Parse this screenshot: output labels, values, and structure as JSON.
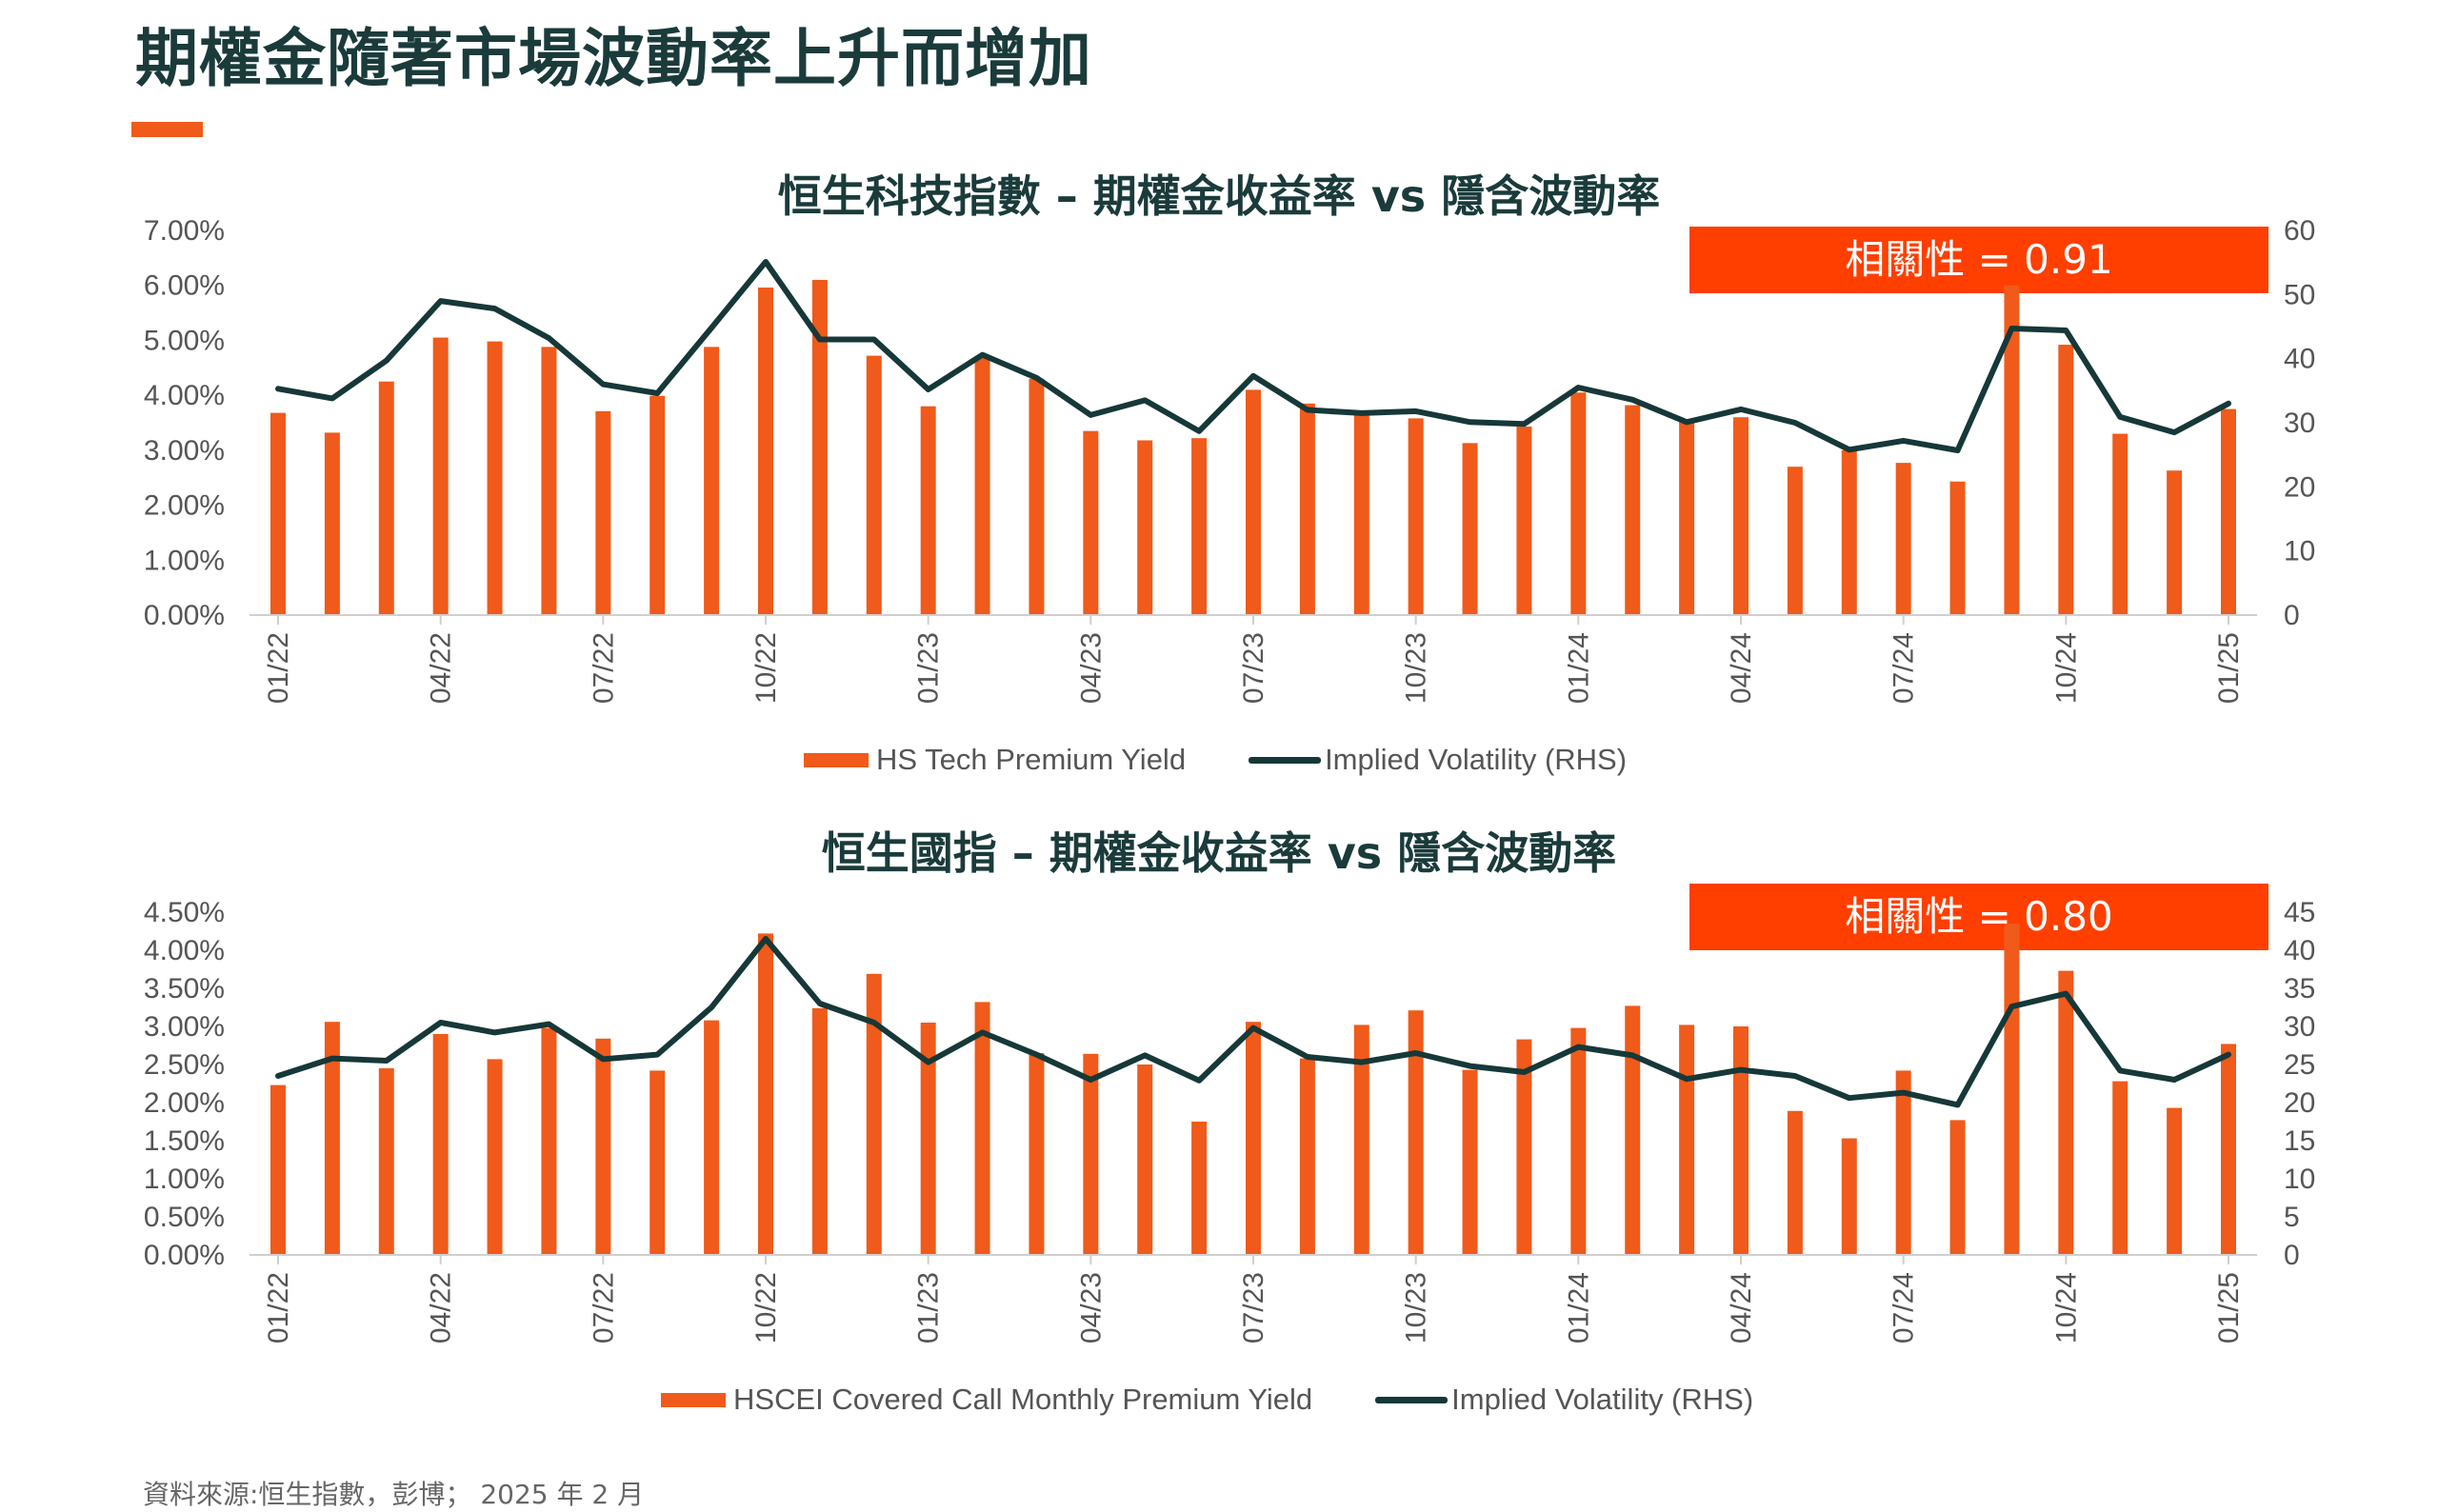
{
  "page": {
    "title": "期權金隨著市場波動率上升而增加",
    "source": "資料來源:恒生指數，彭博； 2025 年 2 月"
  },
  "colors": {
    "bar": "#f05a1a",
    "line": "#163838",
    "highlight": "#ff3f00",
    "title": "#1b3b3b"
  },
  "chart_data": [
    {
      "type": "bar",
      "title": "恒生科技指數 – 期權金收益率 vs 隱含波動率",
      "annotation": "相關性 = 0.91",
      "x": [
        "01/22",
        "02/22",
        "03/22",
        "04/22",
        "05/22",
        "06/22",
        "07/22",
        "08/22",
        "09/22",
        "10/22",
        "11/22",
        "12/22",
        "01/23",
        "02/23",
        "03/23",
        "04/23",
        "05/23",
        "06/23",
        "07/23",
        "08/23",
        "09/23",
        "10/23",
        "11/23",
        "12/23",
        "01/24",
        "02/24",
        "03/24",
        "04/24",
        "05/24",
        "06/24",
        "07/24",
        "08/24",
        "09/24",
        "10/24",
        "11/24",
        "12/24",
        "01/25"
      ],
      "x_ticks": [
        "01/22",
        "04/22",
        "07/22",
        "10/22",
        "01/23",
        "04/23",
        "07/23",
        "10/23",
        "01/24",
        "04/24",
        "07/24",
        "10/24",
        "01/25"
      ],
      "ylim": [
        0,
        0.07
      ],
      "y_ticks": [
        "0.00%",
        "1.00%",
        "2.00%",
        "3.00%",
        "4.00%",
        "5.00%",
        "6.00%",
        "7.00%"
      ],
      "y2lim": [
        0,
        60
      ],
      "y2_ticks": [
        "0",
        "10",
        "20",
        "30",
        "40",
        "50",
        "60"
      ],
      "series": [
        {
          "name": "HS Tech Premium Yield",
          "kind": "bar",
          "axis": "left",
          "values": [
            0.0368,
            0.0332,
            0.0425,
            0.0505,
            0.0498,
            0.0488,
            0.0371,
            0.0399,
            0.0488,
            0.0596,
            0.061,
            0.0472,
            0.038,
            0.047,
            0.043,
            0.0335,
            0.0318,
            0.0322,
            0.041,
            0.0385,
            0.0365,
            0.0358,
            0.0313,
            0.0343,
            0.0405,
            0.0382,
            0.0355,
            0.036,
            0.027,
            0.03,
            0.0277,
            0.0243,
            0.06,
            0.0492,
            0.033,
            0.0263,
            0.0375
          ]
        },
        {
          "name": "Implied Volatility (RHS)",
          "kind": "line",
          "axis": "right",
          "values": [
            35.3,
            33.8,
            39.7,
            49.0,
            47.8,
            43.2,
            36.0,
            34.6,
            44.8,
            55.1,
            43.0,
            43.0,
            35.2,
            40.6,
            37.0,
            31.2,
            33.5,
            28.7,
            37.3,
            32.0,
            31.5,
            31.8,
            30.1,
            29.8,
            35.5,
            33.6,
            30.1,
            32.1,
            30.0,
            25.8,
            27.2,
            25.7,
            44.7,
            44.4,
            30.9,
            28.5,
            33.0
          ]
        }
      ],
      "legend_position": "bottom"
    },
    {
      "type": "bar",
      "title": "恒生國指 – 期權金收益率 vs 隱含波動率",
      "annotation": "相關性 = 0.80",
      "x": [
        "01/22",
        "02/22",
        "03/22",
        "04/22",
        "05/22",
        "06/22",
        "07/22",
        "08/22",
        "09/22",
        "10/22",
        "11/22",
        "12/22",
        "01/23",
        "02/23",
        "03/23",
        "04/23",
        "05/23",
        "06/23",
        "07/23",
        "08/23",
        "09/23",
        "10/23",
        "11/23",
        "12/23",
        "01/24",
        "02/24",
        "03/24",
        "04/24",
        "05/24",
        "06/24",
        "07/24",
        "08/24",
        "09/24",
        "10/24",
        "11/24",
        "12/24",
        "01/25"
      ],
      "x_ticks": [
        "01/22",
        "04/22",
        "07/22",
        "10/22",
        "01/23",
        "04/23",
        "07/23",
        "10/23",
        "01/24",
        "04/24",
        "07/24",
        "10/24",
        "01/25"
      ],
      "ylim": [
        0,
        0.045
      ],
      "y_ticks": [
        "0.00%",
        "0.50%",
        "1.00%",
        "1.50%",
        "2.00%",
        "2.50%",
        "3.00%",
        "3.50%",
        "4.00%",
        "4.50%"
      ],
      "y2lim": [
        0,
        45
      ],
      "y2_ticks": [
        "0",
        "5",
        "10",
        "15",
        "20",
        "25",
        "30",
        "35",
        "40",
        "45"
      ],
      "series": [
        {
          "name": "HSCEI Covered Call Monthly Premium Yield",
          "kind": "bar",
          "axis": "left",
          "values": [
            0.0223,
            0.0306,
            0.0245,
            0.029,
            0.0257,
            0.0298,
            0.0284,
            0.0242,
            0.0308,
            0.0422,
            0.0324,
            0.0369,
            0.0305,
            0.0332,
            0.0265,
            0.0264,
            0.025,
            0.0175,
            0.0306,
            0.0258,
            0.0302,
            0.0321,
            0.0243,
            0.0283,
            0.0298,
            0.0327,
            0.0302,
            0.03,
            0.0189,
            0.0153,
            0.0242,
            0.0177,
            0.0435,
            0.0373,
            0.0228,
            0.0193,
            0.0277
          ]
        },
        {
          "name": "Implied Volatility (RHS)",
          "kind": "line",
          "axis": "right",
          "values": [
            23.5,
            25.8,
            25.5,
            30.5,
            29.2,
            30.3,
            25.7,
            26.3,
            32.5,
            41.5,
            33.0,
            30.5,
            25.3,
            29.2,
            26.3,
            23.0,
            26.2,
            22.9,
            29.8,
            26.0,
            25.3,
            26.5,
            24.8,
            24.0,
            27.3,
            26.2,
            23.1,
            24.3,
            23.5,
            20.6,
            21.3,
            19.7,
            32.6,
            34.3,
            24.2,
            23.0,
            26.3
          ]
        }
      ],
      "legend_position": "bottom"
    }
  ]
}
